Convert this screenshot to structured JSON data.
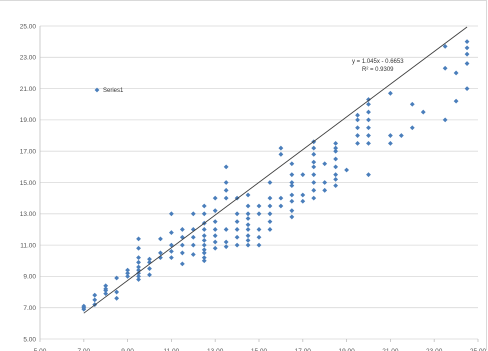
{
  "chart_data": {
    "type": "scatter",
    "title": "",
    "xlabel": "",
    "ylabel": "",
    "xlim": [
      5,
      25
    ],
    "ylim": [
      5,
      25
    ],
    "x_ticks": [
      "5.00",
      "7.00",
      "9.00",
      "11.00",
      "13.00",
      "15.00",
      "17.00",
      "19.00",
      "21.00",
      "23.00",
      "25.00"
    ],
    "y_ticks": [
      "5.00",
      "7.00",
      "9.00",
      "11.00",
      "13.00",
      "15.00",
      "17.00",
      "19.00",
      "21.00",
      "23.00",
      "25.00"
    ],
    "grid": "horizontal",
    "legend_position": "top-left",
    "colors": {
      "marker": "#4a7ebb",
      "trendline": "#404040",
      "grid": "#d9d9d9"
    },
    "series": [
      {
        "name": "Series1",
        "marker": "diamond",
        "points": [
          [
            7.0,
            6.9
          ],
          [
            7.0,
            7.0
          ],
          [
            7.0,
            7.1
          ],
          [
            7.5,
            7.2
          ],
          [
            7.5,
            7.5
          ],
          [
            7.5,
            7.8
          ],
          [
            8.0,
            7.9
          ],
          [
            8.0,
            8.1
          ],
          [
            8.0,
            8.2
          ],
          [
            8.0,
            8.4
          ],
          [
            8.5,
            7.6
          ],
          [
            8.5,
            8.0
          ],
          [
            8.5,
            8.9
          ],
          [
            9.0,
            9.0
          ],
          [
            9.0,
            9.2
          ],
          [
            9.0,
            9.4
          ],
          [
            9.5,
            8.8
          ],
          [
            9.5,
            9.0
          ],
          [
            9.5,
            9.2
          ],
          [
            9.5,
            9.4
          ],
          [
            9.5,
            9.6
          ],
          [
            9.5,
            9.9
          ],
          [
            9.5,
            10.2
          ],
          [
            9.5,
            10.8
          ],
          [
            9.5,
            11.4
          ],
          [
            10.0,
            9.1
          ],
          [
            10.0,
            9.5
          ],
          [
            10.0,
            9.9
          ],
          [
            10.0,
            10.1
          ],
          [
            10.5,
            10.2
          ],
          [
            10.5,
            10.5
          ],
          [
            10.5,
            11.4
          ],
          [
            11.0,
            10.2
          ],
          [
            11.0,
            10.6
          ],
          [
            11.0,
            11.0
          ],
          [
            11.0,
            11.8
          ],
          [
            11.0,
            13.0
          ],
          [
            11.5,
            9.8
          ],
          [
            11.5,
            10.5
          ],
          [
            11.5,
            11.0
          ],
          [
            11.5,
            11.5
          ],
          [
            11.5,
            12.0
          ],
          [
            12.0,
            10.4
          ],
          [
            12.0,
            11.0
          ],
          [
            12.0,
            11.5
          ],
          [
            12.0,
            12.0
          ],
          [
            12.0,
            13.0
          ],
          [
            12.5,
            10.0
          ],
          [
            12.5,
            10.2
          ],
          [
            12.5,
            10.5
          ],
          [
            12.5,
            10.7
          ],
          [
            12.5,
            11.0
          ],
          [
            12.5,
            11.3
          ],
          [
            12.5,
            11.6
          ],
          [
            12.5,
            12.0
          ],
          [
            12.5,
            12.4
          ],
          [
            12.5,
            13.0
          ],
          [
            12.5,
            13.5
          ],
          [
            13.0,
            10.8
          ],
          [
            13.0,
            11.2
          ],
          [
            13.0,
            11.6
          ],
          [
            13.0,
            12.0
          ],
          [
            13.0,
            12.5
          ],
          [
            13.0,
            13.2
          ],
          [
            13.0,
            14.0
          ],
          [
            13.5,
            10.9
          ],
          [
            13.5,
            11.2
          ],
          [
            13.5,
            12.0
          ],
          [
            13.5,
            14.0
          ],
          [
            13.5,
            14.5
          ],
          [
            13.5,
            15.0
          ],
          [
            13.5,
            16.0
          ],
          [
            14.0,
            11.0
          ],
          [
            14.0,
            11.5
          ],
          [
            14.0,
            12.0
          ],
          [
            14.0,
            12.5
          ],
          [
            14.0,
            13.0
          ],
          [
            14.0,
            14.0
          ],
          [
            14.5,
            11.0
          ],
          [
            14.5,
            11.3
          ],
          [
            14.5,
            11.6
          ],
          [
            14.5,
            12.0
          ],
          [
            14.5,
            12.3
          ],
          [
            14.5,
            12.7
          ],
          [
            14.5,
            13.0
          ],
          [
            14.5,
            13.5
          ],
          [
            14.5,
            14.2
          ],
          [
            15.0,
            11.0
          ],
          [
            15.0,
            11.5
          ],
          [
            15.0,
            12.0
          ],
          [
            15.0,
            13.0
          ],
          [
            15.0,
            13.5
          ],
          [
            15.5,
            12.0
          ],
          [
            15.5,
            12.5
          ],
          [
            15.5,
            13.0
          ],
          [
            15.5,
            13.5
          ],
          [
            15.5,
            14.0
          ],
          [
            15.5,
            15.0
          ],
          [
            16.0,
            13.5
          ],
          [
            16.0,
            14.0
          ],
          [
            16.0,
            16.8
          ],
          [
            16.0,
            17.2
          ],
          [
            16.5,
            12.8
          ],
          [
            16.5,
            13.2
          ],
          [
            16.5,
            13.8
          ],
          [
            16.5,
            14.2
          ],
          [
            16.5,
            14.8
          ],
          [
            16.5,
            15.0
          ],
          [
            16.5,
            15.5
          ],
          [
            16.5,
            16.2
          ],
          [
            17.0,
            13.8
          ],
          [
            17.0,
            14.2
          ],
          [
            17.0,
            15.5
          ],
          [
            17.5,
            14.0
          ],
          [
            17.5,
            14.5
          ],
          [
            17.5,
            15.0
          ],
          [
            17.5,
            15.5
          ],
          [
            17.5,
            16.0
          ],
          [
            17.5,
            16.3
          ],
          [
            17.5,
            16.8
          ],
          [
            17.5,
            17.2
          ],
          [
            17.5,
            17.6
          ],
          [
            18.0,
            14.5
          ],
          [
            18.0,
            15.0
          ],
          [
            18.0,
            16.2
          ],
          [
            18.5,
            14.8
          ],
          [
            18.5,
            15.2
          ],
          [
            18.5,
            15.5
          ],
          [
            18.5,
            16.0
          ],
          [
            18.5,
            16.5
          ],
          [
            18.5,
            17.0
          ],
          [
            18.5,
            17.2
          ],
          [
            18.5,
            17.5
          ],
          [
            19.0,
            15.8
          ],
          [
            19.5,
            17.5
          ],
          [
            19.5,
            18.0
          ],
          [
            19.5,
            18.5
          ],
          [
            19.5,
            19.0
          ],
          [
            19.5,
            19.3
          ],
          [
            20.0,
            15.5
          ],
          [
            20.0,
            17.5
          ],
          [
            20.0,
            18.0
          ],
          [
            20.0,
            18.5
          ],
          [
            20.0,
            19.0
          ],
          [
            20.0,
            19.5
          ],
          [
            20.0,
            20.0
          ],
          [
            20.0,
            20.3
          ],
          [
            21.0,
            17.5
          ],
          [
            21.0,
            20.7
          ],
          [
            21.0,
            18.0
          ],
          [
            21.5,
            18.0
          ],
          [
            22.0,
            18.5
          ],
          [
            22.0,
            20.0
          ],
          [
            22.5,
            19.5
          ],
          [
            23.5,
            19.0
          ],
          [
            23.5,
            23.7
          ],
          [
            23.5,
            22.3
          ],
          [
            24.0,
            20.2
          ],
          [
            24.0,
            22.0
          ],
          [
            24.5,
            21.0
          ],
          [
            24.5,
            22.6
          ],
          [
            24.5,
            23.2
          ],
          [
            24.5,
            23.6
          ],
          [
            24.5,
            24.0
          ]
        ]
      }
    ],
    "trendline": {
      "type": "linear",
      "slope": 1.045,
      "intercept": -0.6653,
      "x_range": [
        7.0,
        24.5
      ],
      "equation_label": "y = 1.045x - 0.6653",
      "r2_label": "R² = 0.9309"
    }
  }
}
